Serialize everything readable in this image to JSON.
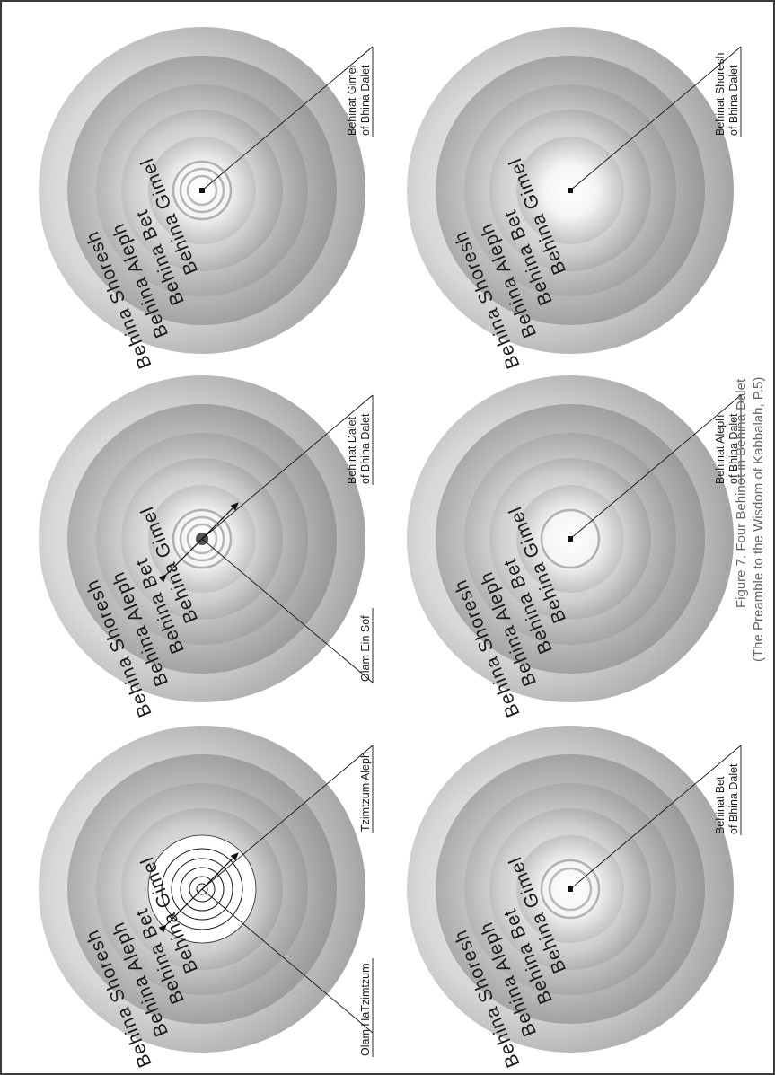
{
  "ring_labels": [
    "Behina Shoresh",
    "Behina Aleph",
    "Behina Bet",
    "Behina Gimel"
  ],
  "diagrams": [
    {
      "callouts": [
        "Behinat Shoresh",
        "of Bhina Dalet"
      ]
    },
    {
      "callouts": [
        "Behinat Aleph",
        "of Bhina Dalet"
      ]
    },
    {
      "callouts": [
        "Behinat Bet",
        "of Bhina Dalet"
      ]
    },
    {
      "callouts": [
        "Behinat Gimel",
        "of Bhina Dalet"
      ]
    },
    {
      "callouts": [
        "Behinat Dalet",
        "of Bhina Dalet"
      ],
      "extra": "Olam Ein Sof"
    },
    {
      "callouts": [
        "Tzimtzum Aleph"
      ],
      "extra": "Olam HaTzimtzum"
    }
  ],
  "caption": {
    "line1": "Figure 7. Four Behinot in Behina Dalet",
    "line2": "(The Preamble to the Wisdom of Kabbalah, P.5)"
  },
  "colors": {
    "ring_light": "#ffffff",
    "ring_dark": "#8f8f8f",
    "line": "#111111"
  }
}
